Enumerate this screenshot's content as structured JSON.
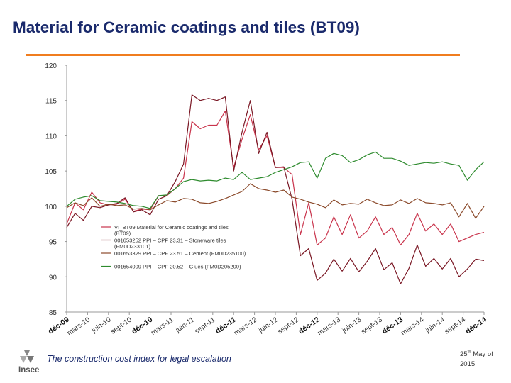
{
  "slide": {
    "title": "Material for Ceramic coatings and tiles (BT09)",
    "footer_text": "The construction cost index for legal escalation",
    "date_day": "25",
    "date_suffix": "th",
    "date_rest": " May  of",
    "date_year": "2015",
    "logo_text": "Insee"
  },
  "colors": {
    "accent_rule": "#f07d1f",
    "title_text": "#1a2a6c"
  },
  "chart_data": {
    "type": "line",
    "title": "",
    "xlabel": "",
    "ylabel": "",
    "ylim": [
      85,
      120
    ],
    "yticks": [
      85,
      90,
      95,
      100,
      105,
      110,
      115,
      120
    ],
    "grid": false,
    "legend_position": "lower-center",
    "x_tick_labels": [
      "déc-09",
      "mars-10",
      "juin-10",
      "sept-10",
      "déc-10",
      "mars-11",
      "juin-11",
      "sept-11",
      "déc-11",
      "mars-12",
      "juin-12",
      "sept-12",
      "déc-12",
      "mars-13",
      "juin-13",
      "sept-13",
      "déc-13",
      "mars-14",
      "juin-14",
      "sept-14",
      "déc-14"
    ],
    "x_tick_bold": [
      "déc-09",
      "déc-10",
      "déc-11",
      "déc-12",
      "déc-13",
      "déc-14"
    ],
    "series": [
      {
        "name": "VI_BT09 Material for Ceramic coatings and tiles (BT09)",
        "color": "#c9344c",
        "values": [
          97.5,
          100.5,
          99.5,
          102,
          100.5,
          100.2,
          100.3,
          101,
          99.3,
          99.6,
          99.5,
          101.5,
          101.5,
          102.5,
          104,
          112,
          111,
          111.5,
          111.5,
          113.5,
          105.5,
          109.5,
          113,
          108,
          110,
          105.5,
          105.5,
          104.5,
          96,
          100.5,
          94.5,
          95.5,
          98.5,
          96,
          98.8,
          95.5,
          96.5,
          98.5,
          96,
          97,
          94.5,
          96,
          99,
          96.5,
          97.5,
          96,
          97.5,
          95,
          95.5,
          96,
          96.3
        ]
      },
      {
        "name": "001653252 PPI – CPF 23.31 – Stoneware tiles (FM0D233101)",
        "color": "#7a1724",
        "values": [
          97,
          99,
          98,
          100,
          99.8,
          100.2,
          100.4,
          101.2,
          99.2,
          99.5,
          98.8,
          101,
          101.5,
          103.5,
          106,
          115.8,
          115,
          115.3,
          115,
          115.5,
          105,
          110.5,
          115,
          107.5,
          110.5,
          105.5,
          105.6,
          101,
          93,
          94,
          89.5,
          90.5,
          92.5,
          90.8,
          92.6,
          90.7,
          92.2,
          94,
          91,
          92,
          89,
          91.2,
          94.5,
          91.5,
          92.6,
          91.1,
          92.6,
          90,
          91.1,
          92.5,
          92.3
        ]
      },
      {
        "name": "001653329 PPI – CPF 23.51 – Cement (FM0D235100)",
        "color": "#8b4a2b",
        "values": [
          99.8,
          100.5,
          100.1,
          101.2,
          100,
          100.3,
          100.1,
          100.2,
          99.6,
          99.7,
          99.5,
          100.2,
          100.8,
          100.6,
          101.1,
          101,
          100.5,
          100.4,
          100.7,
          101.1,
          101.6,
          102.1,
          103.2,
          102.5,
          102.3,
          102,
          102.3,
          101.3,
          101,
          100.6,
          100.3,
          99.8,
          100.9,
          100.2,
          100.4,
          100.3,
          101,
          100.5,
          100.1,
          100.2,
          100.9,
          100.4,
          101.1,
          100.5,
          100.4,
          100.2,
          100.5,
          98.5,
          100.4,
          98.3,
          100
        ]
      },
      {
        "name": "001654009 PPI – CPF 20.52 – Glues (FM0D205200)",
        "color": "#2e8b2e",
        "values": [
          100,
          101,
          101.3,
          101.5,
          100.8,
          100.7,
          100.6,
          100.4,
          100.1,
          100,
          99.7,
          101.5,
          101.6,
          102.5,
          103.5,
          103.8,
          103.6,
          103.7,
          103.6,
          104,
          103.8,
          104.8,
          103.8,
          104,
          104.2,
          104.8,
          105.2,
          105.6,
          106.2,
          106.3,
          104,
          106.8,
          107.5,
          107.2,
          106.2,
          106.6,
          107.3,
          107.7,
          106.8,
          106.8,
          106.4,
          105.8,
          106,
          106.2,
          106.1,
          106.3,
          106,
          105.8,
          103.7,
          105.2,
          106.3
        ]
      }
    ]
  }
}
